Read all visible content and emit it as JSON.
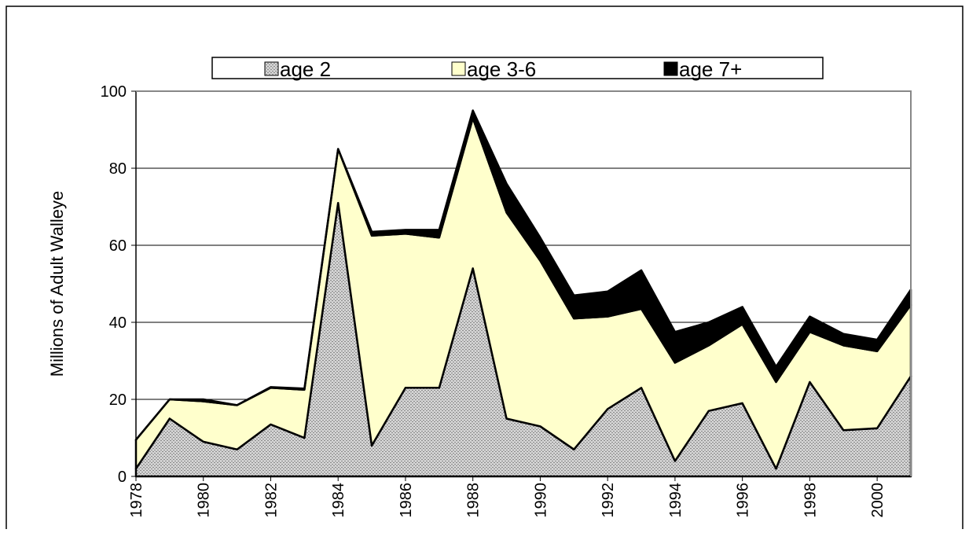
{
  "chart_data": {
    "type": "stacked-area",
    "y_label": "Millions of Adult Walleye",
    "x": [
      1978,
      1979,
      1980,
      1981,
      1982,
      1983,
      1984,
      1985,
      1986,
      1987,
      1988,
      1989,
      1990,
      1991,
      1992,
      1993,
      1994,
      1995,
      1996,
      1997,
      1998,
      1999,
      2000,
      2001
    ],
    "xlim": [
      1978,
      2001
    ],
    "xticks": [
      1978,
      1980,
      1982,
      1984,
      1986,
      1988,
      1990,
      1992,
      1994,
      1996,
      1998,
      2000
    ],
    "ylim": [
      0,
      100
    ],
    "yticks": [
      0,
      20,
      40,
      60,
      80,
      100
    ],
    "grid": true,
    "legend": "top",
    "series": [
      {
        "name": "age 2",
        "color": "#d4d4d4",
        "values": [
          2,
          15,
          9,
          7,
          13.5,
          10,
          71,
          8,
          23,
          23,
          54,
          15,
          13,
          7,
          17.5,
          23,
          4,
          17,
          19,
          2,
          24.5,
          12,
          12.5,
          26
        ]
      },
      {
        "name": "age 3-6",
        "color": "#ffffcc",
        "values": [
          7.5,
          5,
          10.5,
          11.5,
          9.5,
          12.5,
          14,
          54.5,
          40,
          39,
          39,
          53.5,
          43,
          34,
          24,
          20.5,
          25.5,
          17,
          20.5,
          22.5,
          13,
          22,
          20,
          18.5
        ]
      },
      {
        "name": "age 7+",
        "color": "#000000",
        "values": [
          0,
          0,
          0.5,
          0,
          0.2,
          0.3,
          0,
          1,
          1,
          2,
          2,
          7.5,
          6,
          6,
          6.5,
          10,
          8,
          6,
          4.5,
          4,
          4,
          3,
          3,
          4
        ]
      }
    ]
  }
}
